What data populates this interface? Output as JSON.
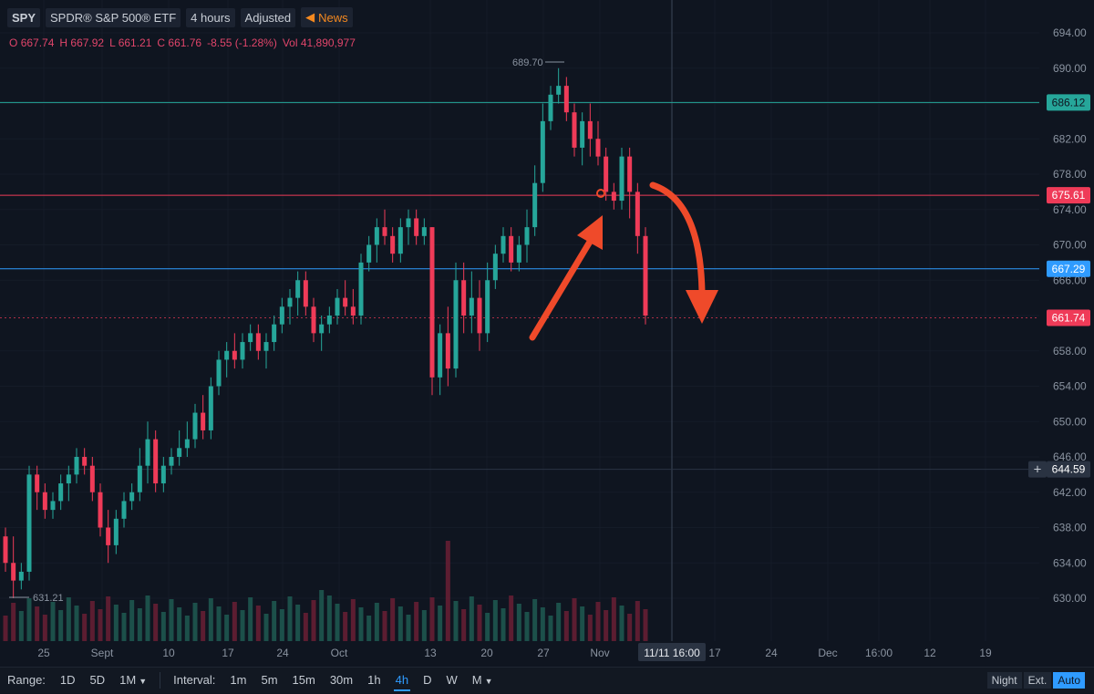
{
  "header": {
    "symbol": "SPY",
    "name": "SPDR® S&P 500® ETF",
    "interval": "4 hours",
    "adjusted": "Adjusted",
    "news": "News"
  },
  "ohlc": {
    "o_label": "O",
    "o": "667.74",
    "h_label": "H",
    "h": "667.92",
    "l_label": "L",
    "l": "661.21",
    "c_label": "C",
    "c": "661.76",
    "change": "-8.55 (-1.28%)",
    "vol_label": "Vol",
    "vol": "41,890,977"
  },
  "chart_data": {
    "type": "candlestick",
    "y_range": [
      626,
      696
    ],
    "y_ticks": [
      "694.00",
      "690.00",
      "686.00",
      "682.00",
      "678.00",
      "674.00",
      "670.00",
      "666.00",
      "662.00",
      "658.00",
      "654.00",
      "650.00",
      "646.00",
      "642.00",
      "638.00",
      "634.00",
      "630.00"
    ],
    "x_ticks": [
      "25",
      "Sept",
      "10",
      "17",
      "24",
      "Oct",
      "13",
      "20",
      "27",
      "Nov",
      "17",
      "24",
      "Dec",
      "16:00",
      "12",
      "19"
    ],
    "crosshair_time": "11/11 16:00",
    "high_annotation": "689.70",
    "low_annotation": "631.21",
    "levels": [
      {
        "price": 686.12,
        "label": "686.12",
        "color": "#26a69a"
      },
      {
        "price": 675.61,
        "label": "675.61",
        "color": "#ef3b58"
      },
      {
        "price": 667.29,
        "label": "667.29",
        "color": "#2f9bff"
      },
      {
        "price": 661.74,
        "label": "661.74",
        "color": "#ef3b58"
      },
      {
        "price": 644.59,
        "label": "644.59",
        "color": "#2a3342"
      }
    ],
    "candles": [
      [
        637,
        638,
        633,
        634
      ],
      [
        634,
        637,
        630,
        632
      ],
      [
        632,
        634,
        631,
        633
      ],
      [
        633,
        645,
        632,
        644
      ],
      [
        644,
        645,
        640,
        642
      ],
      [
        642,
        643,
        639,
        640
      ],
      [
        640,
        642,
        639,
        641
      ],
      [
        641,
        644,
        640,
        643
      ],
      [
        643,
        645,
        641,
        644
      ],
      [
        644,
        647,
        643,
        646
      ],
      [
        646,
        647,
        644,
        645
      ],
      [
        645,
        646,
        641,
        642
      ],
      [
        642,
        643,
        637,
        638
      ],
      [
        638,
        640,
        634,
        636
      ],
      [
        636,
        640,
        635,
        639
      ],
      [
        639,
        642,
        638,
        641
      ],
      [
        641,
        643,
        640,
        642
      ],
      [
        642,
        647,
        641,
        645
      ],
      [
        645,
        650,
        643,
        648
      ],
      [
        648,
        649,
        642,
        643
      ],
      [
        643,
        646,
        642,
        645
      ],
      [
        645,
        647,
        644,
        646
      ],
      [
        646,
        649,
        645,
        647
      ],
      [
        647,
        650,
        646,
        648
      ],
      [
        648,
        652,
        647,
        651
      ],
      [
        651,
        653,
        648,
        649
      ],
      [
        649,
        655,
        648,
        654
      ],
      [
        654,
        658,
        653,
        657
      ],
      [
        657,
        659,
        655,
        658
      ],
      [
        658,
        660,
        656,
        657
      ],
      [
        657,
        660,
        656,
        659
      ],
      [
        659,
        661,
        658,
        660
      ],
      [
        660,
        661,
        657,
        658
      ],
      [
        658,
        660,
        656,
        659
      ],
      [
        659,
        662,
        658,
        661
      ],
      [
        661,
        664,
        660,
        663
      ],
      [
        663,
        665,
        661,
        664
      ],
      [
        664,
        667,
        662,
        666
      ],
      [
        666,
        667,
        662,
        663
      ],
      [
        663,
        664,
        659,
        660
      ],
      [
        660,
        662,
        658,
        661
      ],
      [
        661,
        663,
        660,
        662
      ],
      [
        662,
        665,
        661,
        664
      ],
      [
        664,
        666,
        662,
        663
      ],
      [
        663,
        665,
        661,
        662
      ],
      [
        662,
        669,
        661,
        668
      ],
      [
        668,
        671,
        667,
        670
      ],
      [
        670,
        673,
        668,
        672
      ],
      [
        672,
        674,
        670,
        671
      ],
      [
        671,
        672,
        668,
        669
      ],
      [
        669,
        673,
        668,
        672
      ],
      [
        672,
        674,
        670,
        673
      ],
      [
        673,
        674,
        670,
        671
      ],
      [
        671,
        673,
        670,
        672
      ],
      [
        672,
        672,
        653,
        655
      ],
      [
        655,
        661,
        653,
        660
      ],
      [
        660,
        663,
        654,
        656
      ],
      [
        656,
        668,
        655,
        666
      ],
      [
        666,
        668,
        660,
        662
      ],
      [
        662,
        667,
        660,
        664
      ],
      [
        664,
        666,
        658,
        660
      ],
      [
        660,
        668,
        659,
        666
      ],
      [
        666,
        670,
        665,
        669
      ],
      [
        669,
        672,
        668,
        671
      ],
      [
        671,
        672,
        667,
        668
      ],
      [
        668,
        671,
        667,
        670
      ],
      [
        670,
        674,
        668,
        672
      ],
      [
        672,
        679,
        671,
        677
      ],
      [
        677,
        686,
        676,
        684
      ],
      [
        684,
        688,
        683,
        687
      ],
      [
        687,
        690,
        686,
        688
      ],
      [
        688,
        689,
        684,
        685
      ],
      [
        685,
        686,
        680,
        681
      ],
      [
        681,
        685,
        679,
        684
      ],
      [
        684,
        686,
        680,
        682
      ],
      [
        682,
        684,
        679,
        680
      ],
      [
        680,
        681,
        675,
        676
      ],
      [
        676,
        677,
        674,
        675
      ],
      [
        675,
        681,
        674,
        680
      ],
      [
        680,
        681,
        673,
        676
      ],
      [
        676,
        677,
        669,
        671
      ],
      [
        671,
        672,
        661,
        662
      ]
    ]
  },
  "bottombar": {
    "range_label": "Range:",
    "ranges": [
      "1D",
      "5D",
      "1M"
    ],
    "interval_label": "Interval:",
    "intervals": [
      "1m",
      "5m",
      "15m",
      "30m",
      "1h",
      "4h",
      "D",
      "W",
      "M"
    ],
    "selected_interval": "4h",
    "right_buttons": [
      "Night",
      "Ext.",
      "Auto"
    ]
  },
  "colors": {
    "up": "#26a69a",
    "down": "#ef3b58",
    "arrow": "#ef4a2a",
    "bg": "#0f1520"
  }
}
